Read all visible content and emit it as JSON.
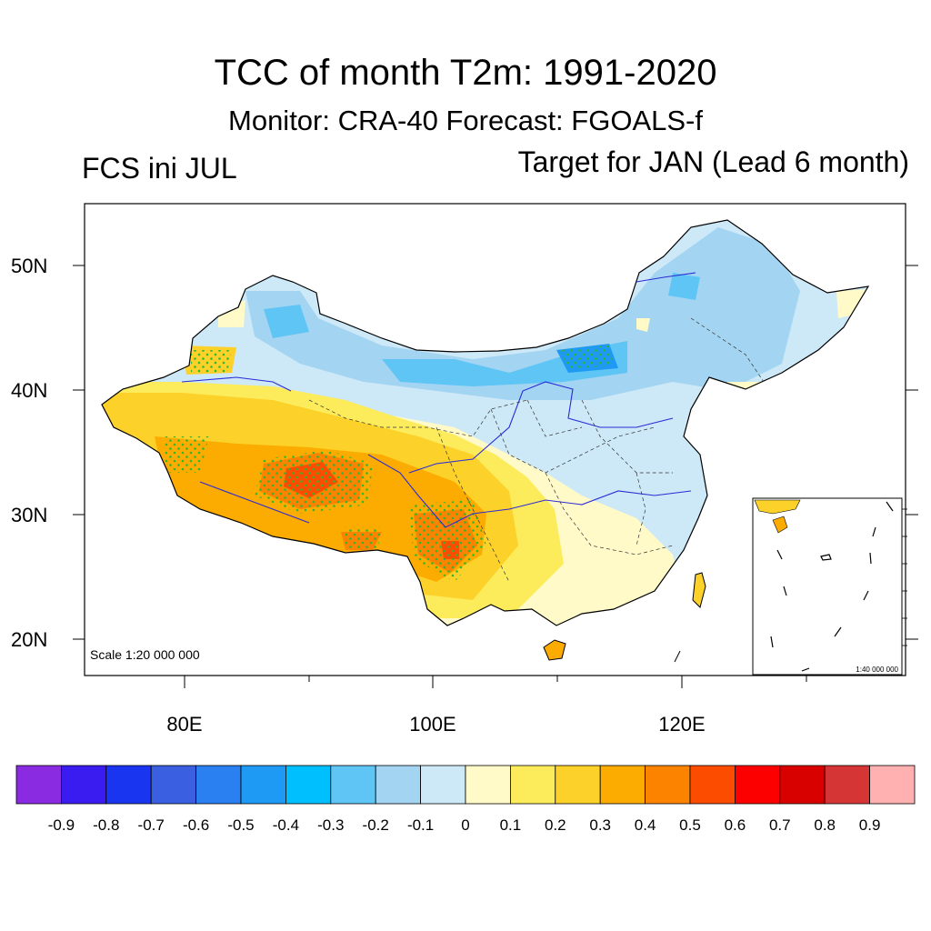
{
  "title": "TCC of month T2m: 1991-2020",
  "subtitle": "Monitor: CRA-40   Forecast: FGOALS-f",
  "left_label": "FCS ini JUL",
  "right_label": "Target for JAN (Lead 6 month)",
  "map": {
    "lat_ticks": [
      "50N",
      "40N",
      "30N",
      "20N"
    ],
    "lon_ticks": [
      "80E",
      "100E",
      "120E"
    ],
    "scale_label": "Scale 1:20 000 000",
    "inset_scale_label": "1:40 000 000"
  },
  "colorbar": {
    "colors": [
      "#8a2be2",
      "#3a1cf0",
      "#1a35f0",
      "#3a5fe0",
      "#2a80f0",
      "#1e9af5",
      "#00bfff",
      "#5ec5f5",
      "#a3d5f2",
      "#cde8f7",
      "#fffac8",
      "#fcec5c",
      "#fcd12a",
      "#fcab00",
      "#fc8300",
      "#fc4c00",
      "#fc0000",
      "#d90000",
      "#d63535",
      "#ffb0b0"
    ],
    "labels": [
      "-0.9",
      "-0.8",
      "-0.7",
      "-0.6",
      "-0.5",
      "-0.4",
      "-0.3",
      "-0.2",
      "-0.1",
      "0",
      "0.1",
      "0.2",
      "0.3",
      "0.4",
      "0.5",
      "0.6",
      "0.7",
      "0.8",
      "0.9"
    ]
  }
}
